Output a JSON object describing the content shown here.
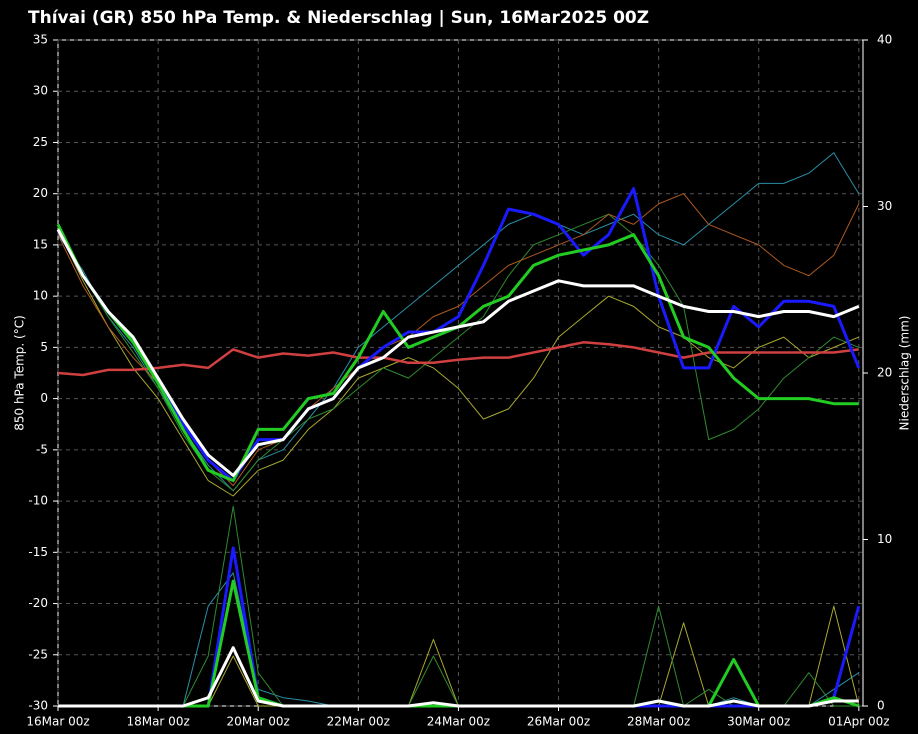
{
  "chart_data": {
    "type": "line",
    "title": "Thívai  (GR)  850 hPa Temp. & Niederschlag | Sun, 16Mar2025 00Z",
    "ylabel": "850 hPa Temp. (°C)",
    "y2label": "Niederschlag (mm)",
    "x": [
      0,
      12,
      24,
      36,
      48,
      60,
      72,
      84,
      96,
      108,
      120,
      132,
      144,
      156,
      168,
      180,
      192,
      204,
      216,
      228,
      240,
      252,
      264,
      276,
      288,
      300,
      312,
      324,
      336,
      348,
      360,
      372,
      384
    ],
    "xlim": [
      0,
      386
    ],
    "xticks": [
      {
        "value": 0,
        "label": "16Mar 00z"
      },
      {
        "value": 48,
        "label": "18Mar 00z"
      },
      {
        "value": 96,
        "label": "20Mar 00z"
      },
      {
        "value": 144,
        "label": "22Mar 00z"
      },
      {
        "value": 192,
        "label": "24Mar 00z"
      },
      {
        "value": 240,
        "label": "26Mar 00z"
      },
      {
        "value": 288,
        "label": "28Mar 00z"
      },
      {
        "value": 336,
        "label": "30Mar 00z"
      },
      {
        "value": 384,
        "label": "01Apr 00z"
      }
    ],
    "ylim": [
      -30,
      35
    ],
    "yticks": [
      -30,
      -25,
      -20,
      -15,
      -10,
      -5,
      0,
      5,
      10,
      15,
      20,
      25,
      30,
      35
    ],
    "y2lim": [
      0,
      40
    ],
    "y2ticks": [
      0,
      10,
      20,
      30,
      40
    ],
    "grid": true,
    "series": [
      {
        "color": "#2a8fa8",
        "linewidth": 1,
        "values": [
          16,
          12.5,
          8,
          5,
          1,
          -3,
          -6.5,
          -9,
          -6,
          -5,
          -2,
          1,
          5,
          7,
          9,
          11,
          13,
          15,
          17,
          18,
          17,
          16,
          17,
          18,
          16,
          15,
          17,
          19,
          21,
          21,
          22,
          24,
          20
        ]
      },
      {
        "color": "#a8a830",
        "linewidth": 1,
        "values": [
          16.5,
          11.5,
          7,
          3,
          0,
          -4,
          -8,
          -9.5,
          -7,
          -6,
          -3,
          -1,
          2,
          3,
          4,
          3,
          1,
          -2,
          -1,
          2,
          6,
          8,
          10,
          9,
          7,
          6,
          4,
          3,
          5,
          6,
          4,
          5,
          6
        ]
      },
      {
        "color": "#2f8a2f",
        "linewidth": 1,
        "values": [
          17,
          12,
          8,
          4.5,
          1,
          -3.5,
          -7,
          -9,
          -6,
          -4,
          -2,
          -1,
          1,
          3,
          2,
          4,
          6,
          8,
          12,
          15,
          16,
          17,
          18,
          16,
          13,
          9,
          -4,
          -3,
          -1,
          2,
          4,
          6,
          5
        ]
      },
      {
        "color": "#b05a20",
        "linewidth": 1,
        "values": [
          16,
          11,
          7,
          4,
          1.5,
          -2.5,
          -6,
          -8.5,
          -5,
          -4,
          -1,
          1,
          3,
          5,
          6,
          8,
          9,
          11,
          13,
          14,
          15,
          16,
          18,
          17,
          19,
          20,
          17,
          16,
          15,
          13,
          12,
          14,
          19
        ]
      },
      {
        "color": "#d04040",
        "linewidth": 2.5,
        "values": [
          2.5,
          2.3,
          2.8,
          2.8,
          3,
          3.3,
          3,
          4.8,
          4,
          4.4,
          4.2,
          4.5,
          4,
          4,
          3.5,
          3.5,
          3.8,
          4,
          4,
          4.5,
          5,
          5.5,
          5.3,
          5,
          4.5,
          4,
          4.5,
          4.5,
          4.5,
          4.5,
          4.5,
          4.5,
          4.8
        ]
      },
      {
        "color": "#1a1aff",
        "linewidth": 3,
        "values": [
          16.5,
          12,
          8.5,
          5.5,
          2,
          -2.5,
          -6,
          -8,
          -4,
          -4,
          -1,
          0,
          3,
          5,
          6.5,
          6.5,
          8,
          13,
          18.5,
          18,
          17,
          14,
          16,
          20.5,
          10,
          3,
          3,
          9,
          7,
          9.5,
          9.5,
          9,
          3
        ]
      },
      {
        "color": "#22cc22",
        "linewidth": 3,
        "values": [
          17,
          12,
          8.5,
          5.5,
          1.5,
          -3,
          -7,
          -8,
          -3,
          -3,
          0,
          0.5,
          4,
          8.5,
          5,
          6,
          7,
          9,
          10,
          13,
          14,
          14.5,
          15,
          16,
          12,
          6,
          5,
          2,
          0,
          0,
          0,
          -0.5,
          -0.5
        ]
      },
      {
        "color": "#ffffff",
        "linewidth": 3,
        "values": [
          16.5,
          12,
          8.5,
          6,
          2,
          -2,
          -5.5,
          -7.5,
          -4.5,
          -4,
          -1,
          0,
          3,
          4,
          6,
          6.5,
          7,
          7.5,
          9.5,
          10.5,
          11.5,
          11,
          11,
          11,
          10,
          9,
          8.5,
          8.5,
          8,
          8.5,
          8.5,
          8,
          9
        ]
      },
      {
        "axis": "y2",
        "color": "#2a8fa8",
        "linewidth": 1,
        "values": [
          0,
          0,
          0,
          0,
          0,
          0,
          6,
          8,
          1,
          0.5,
          0.3,
          0,
          0,
          0,
          0,
          0,
          0,
          0,
          0,
          0,
          0,
          0,
          0,
          0,
          0,
          0,
          0,
          0.5,
          0,
          0,
          0,
          1,
          2
        ]
      },
      {
        "axis": "y2",
        "color": "#a8a830",
        "linewidth": 1,
        "values": [
          0,
          0,
          0,
          0,
          0,
          0,
          0,
          3,
          0,
          0,
          0,
          0,
          0,
          0,
          0,
          4,
          0,
          0,
          0,
          0,
          0,
          0,
          0,
          0,
          0,
          5,
          0,
          0,
          0,
          0,
          0,
          6,
          0
        ]
      },
      {
        "axis": "y2",
        "color": "#2f8a2f",
        "linewidth": 1,
        "values": [
          0,
          0,
          0,
          0,
          0,
          0,
          3,
          12,
          2,
          0,
          0,
          0,
          0,
          0,
          0,
          3,
          0,
          0,
          0,
          0,
          0,
          0,
          0,
          0,
          6,
          0,
          1,
          0,
          0,
          0,
          2,
          0,
          0
        ]
      },
      {
        "axis": "y2",
        "color": "#1a1aff",
        "linewidth": 3,
        "values": [
          0,
          0,
          0,
          0,
          0,
          0,
          0,
          9.5,
          0.5,
          0,
          0,
          0,
          0,
          0,
          0,
          0,
          0,
          0,
          0,
          0,
          0,
          0,
          0,
          0,
          0,
          0,
          0,
          0,
          0,
          0,
          0,
          0.5,
          6
        ]
      },
      {
        "axis": "y2",
        "color": "#22cc22",
        "linewidth": 3,
        "values": [
          0,
          0,
          0,
          0,
          0,
          0,
          0,
          7.5,
          0.5,
          0,
          0,
          0,
          0,
          0,
          0,
          0,
          0,
          0,
          0,
          0,
          0,
          0,
          0,
          0,
          0.3,
          0,
          0,
          2.8,
          0,
          0,
          0,
          0.5,
          0
        ]
      },
      {
        "axis": "y2",
        "color": "#ffffff",
        "linewidth": 3,
        "values": [
          0,
          0,
          0,
          0,
          0,
          0,
          0.5,
          3.5,
          0.3,
          0,
          0,
          0,
          0,
          0,
          0,
          0.2,
          0,
          0,
          0,
          0,
          0,
          0,
          0,
          0,
          0.3,
          0,
          0,
          0.3,
          0,
          0,
          0,
          0.3,
          0.3
        ]
      }
    ]
  }
}
